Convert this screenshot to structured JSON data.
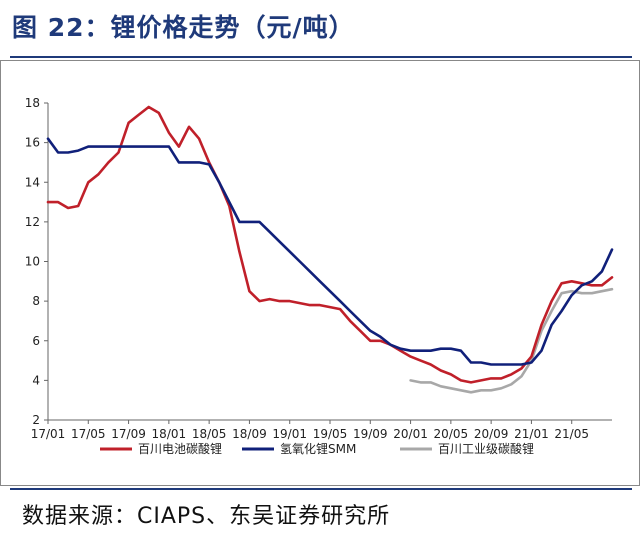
{
  "figure_title": "图 22：锂价格走势（元/吨）",
  "source": "数据来源：CIAPS、东吴证券研究所",
  "colors": {
    "title": "#1f3a7a",
    "red": "#c0202a",
    "navy": "#10207a",
    "gray": "#a8a8a8"
  },
  "chart_data": {
    "type": "line",
    "title": "",
    "xlabel": "",
    "ylabel": "",
    "ylim": [
      2,
      18
    ],
    "yticks": [
      2,
      4,
      6,
      8,
      10,
      12,
      14,
      16,
      18
    ],
    "xlim": [
      "2017-01",
      "2021-09"
    ],
    "xticks": [
      "17/01",
      "17/05",
      "17/09",
      "18/01",
      "18/05",
      "18/09",
      "19/01",
      "19/05",
      "19/09",
      "20/01",
      "20/05",
      "20/09",
      "21/01",
      "21/05"
    ],
    "grid": false,
    "legend_position": "bottom",
    "series": [
      {
        "name": "百川电池碳酸锂",
        "color": "#c0202a",
        "points": [
          [
            "2017-01",
            13.0
          ],
          [
            "2017-02",
            13.0
          ],
          [
            "2017-03",
            12.7
          ],
          [
            "2017-04",
            12.8
          ],
          [
            "2017-05",
            14.0
          ],
          [
            "2017-06",
            14.4
          ],
          [
            "2017-07",
            15.0
          ],
          [
            "2017-08",
            15.5
          ],
          [
            "2017-09",
            17.0
          ],
          [
            "2017-10",
            17.4
          ],
          [
            "2017-11",
            17.8
          ],
          [
            "2017-12",
            17.5
          ],
          [
            "2018-01",
            16.5
          ],
          [
            "2018-02",
            15.8
          ],
          [
            "2018-03",
            16.8
          ],
          [
            "2018-04",
            16.2
          ],
          [
            "2018-05",
            15.0
          ],
          [
            "2018-06",
            14.0
          ],
          [
            "2018-07",
            12.8
          ],
          [
            "2018-08",
            10.5
          ],
          [
            "2018-09",
            8.5
          ],
          [
            "2018-10",
            8.0
          ],
          [
            "2018-11",
            8.1
          ],
          [
            "2018-12",
            8.0
          ],
          [
            "2019-01",
            8.0
          ],
          [
            "2019-02",
            7.9
          ],
          [
            "2019-03",
            7.8
          ],
          [
            "2019-04",
            7.8
          ],
          [
            "2019-05",
            7.7
          ],
          [
            "2019-06",
            7.6
          ],
          [
            "2019-07",
            7.0
          ],
          [
            "2019-08",
            6.5
          ],
          [
            "2019-09",
            6.0
          ],
          [
            "2019-10",
            6.0
          ],
          [
            "2019-11",
            5.8
          ],
          [
            "2019-12",
            5.5
          ],
          [
            "2020-01",
            5.2
          ],
          [
            "2020-02",
            5.0
          ],
          [
            "2020-03",
            4.8
          ],
          [
            "2020-04",
            4.5
          ],
          [
            "2020-05",
            4.3
          ],
          [
            "2020-06",
            4.0
          ],
          [
            "2020-07",
            3.9
          ],
          [
            "2020-08",
            4.0
          ],
          [
            "2020-09",
            4.1
          ],
          [
            "2020-10",
            4.1
          ],
          [
            "2020-11",
            4.3
          ],
          [
            "2020-12",
            4.6
          ],
          [
            "2021-01",
            5.2
          ],
          [
            "2021-02",
            6.8
          ],
          [
            "2021-03",
            8.0
          ],
          [
            "2021-04",
            8.9
          ],
          [
            "2021-05",
            9.0
          ],
          [
            "2021-06",
            8.9
          ],
          [
            "2021-07",
            8.8
          ],
          [
            "2021-08",
            8.8
          ],
          [
            "2021-09",
            9.2
          ]
        ]
      },
      {
        "name": "氢氧化锂SMM",
        "color": "#10207a",
        "points": [
          [
            "2017-01",
            16.2
          ],
          [
            "2017-02",
            15.5
          ],
          [
            "2017-03",
            15.5
          ],
          [
            "2017-04",
            15.6
          ],
          [
            "2017-05",
            15.8
          ],
          [
            "2017-06",
            15.8
          ],
          [
            "2017-08",
            15.8
          ],
          [
            "2017-10",
            15.8
          ],
          [
            "2017-12",
            15.8
          ],
          [
            "2018-01",
            15.8
          ],
          [
            "2018-02",
            15.0
          ],
          [
            "2018-04",
            15.0
          ],
          [
            "2018-05",
            14.9
          ],
          [
            "2018-06",
            14.0
          ],
          [
            "2018-07",
            13.0
          ],
          [
            "2018-08",
            12.0
          ],
          [
            "2018-09",
            12.0
          ],
          [
            "2018-10",
            12.0
          ],
          [
            "2018-11",
            11.5
          ],
          [
            "2018-12",
            11.0
          ],
          [
            "2019-01",
            10.5
          ],
          [
            "2019-02",
            10.0
          ],
          [
            "2019-03",
            9.5
          ],
          [
            "2019-04",
            9.0
          ],
          [
            "2019-05",
            8.5
          ],
          [
            "2019-06",
            8.0
          ],
          [
            "2019-07",
            7.5
          ],
          [
            "2019-08",
            7.0
          ],
          [
            "2019-09",
            6.5
          ],
          [
            "2019-10",
            6.2
          ],
          [
            "2019-11",
            5.8
          ],
          [
            "2019-12",
            5.6
          ],
          [
            "2020-01",
            5.5
          ],
          [
            "2020-02",
            5.5
          ],
          [
            "2020-03",
            5.5
          ],
          [
            "2020-04",
            5.6
          ],
          [
            "2020-05",
            5.6
          ],
          [
            "2020-06",
            5.5
          ],
          [
            "2020-07",
            4.9
          ],
          [
            "2020-08",
            4.9
          ],
          [
            "2020-09",
            4.8
          ],
          [
            "2020-10",
            4.8
          ],
          [
            "2020-11",
            4.8
          ],
          [
            "2020-12",
            4.8
          ],
          [
            "2021-01",
            4.9
          ],
          [
            "2021-02",
            5.5
          ],
          [
            "2021-03",
            6.8
          ],
          [
            "2021-04",
            7.5
          ],
          [
            "2021-05",
            8.3
          ],
          [
            "2021-06",
            8.8
          ],
          [
            "2021-07",
            9.0
          ],
          [
            "2021-08",
            9.5
          ],
          [
            "2021-09",
            10.6
          ]
        ]
      },
      {
        "name": "百川工业级碳酸锂",
        "color": "#a8a8a8",
        "points": [
          [
            "2020-01",
            4.0
          ],
          [
            "2020-02",
            3.9
          ],
          [
            "2020-03",
            3.9
          ],
          [
            "2020-04",
            3.7
          ],
          [
            "2020-05",
            3.6
          ],
          [
            "2020-06",
            3.5
          ],
          [
            "2020-07",
            3.4
          ],
          [
            "2020-08",
            3.5
          ],
          [
            "2020-09",
            3.5
          ],
          [
            "2020-10",
            3.6
          ],
          [
            "2020-11",
            3.8
          ],
          [
            "2020-12",
            4.2
          ],
          [
            "2021-01",
            5.0
          ],
          [
            "2021-02",
            6.5
          ],
          [
            "2021-03",
            7.5
          ],
          [
            "2021-04",
            8.4
          ],
          [
            "2021-05",
            8.5
          ],
          [
            "2021-06",
            8.4
          ],
          [
            "2021-07",
            8.4
          ],
          [
            "2021-08",
            8.5
          ],
          [
            "2021-09",
            8.6
          ]
        ]
      }
    ]
  }
}
